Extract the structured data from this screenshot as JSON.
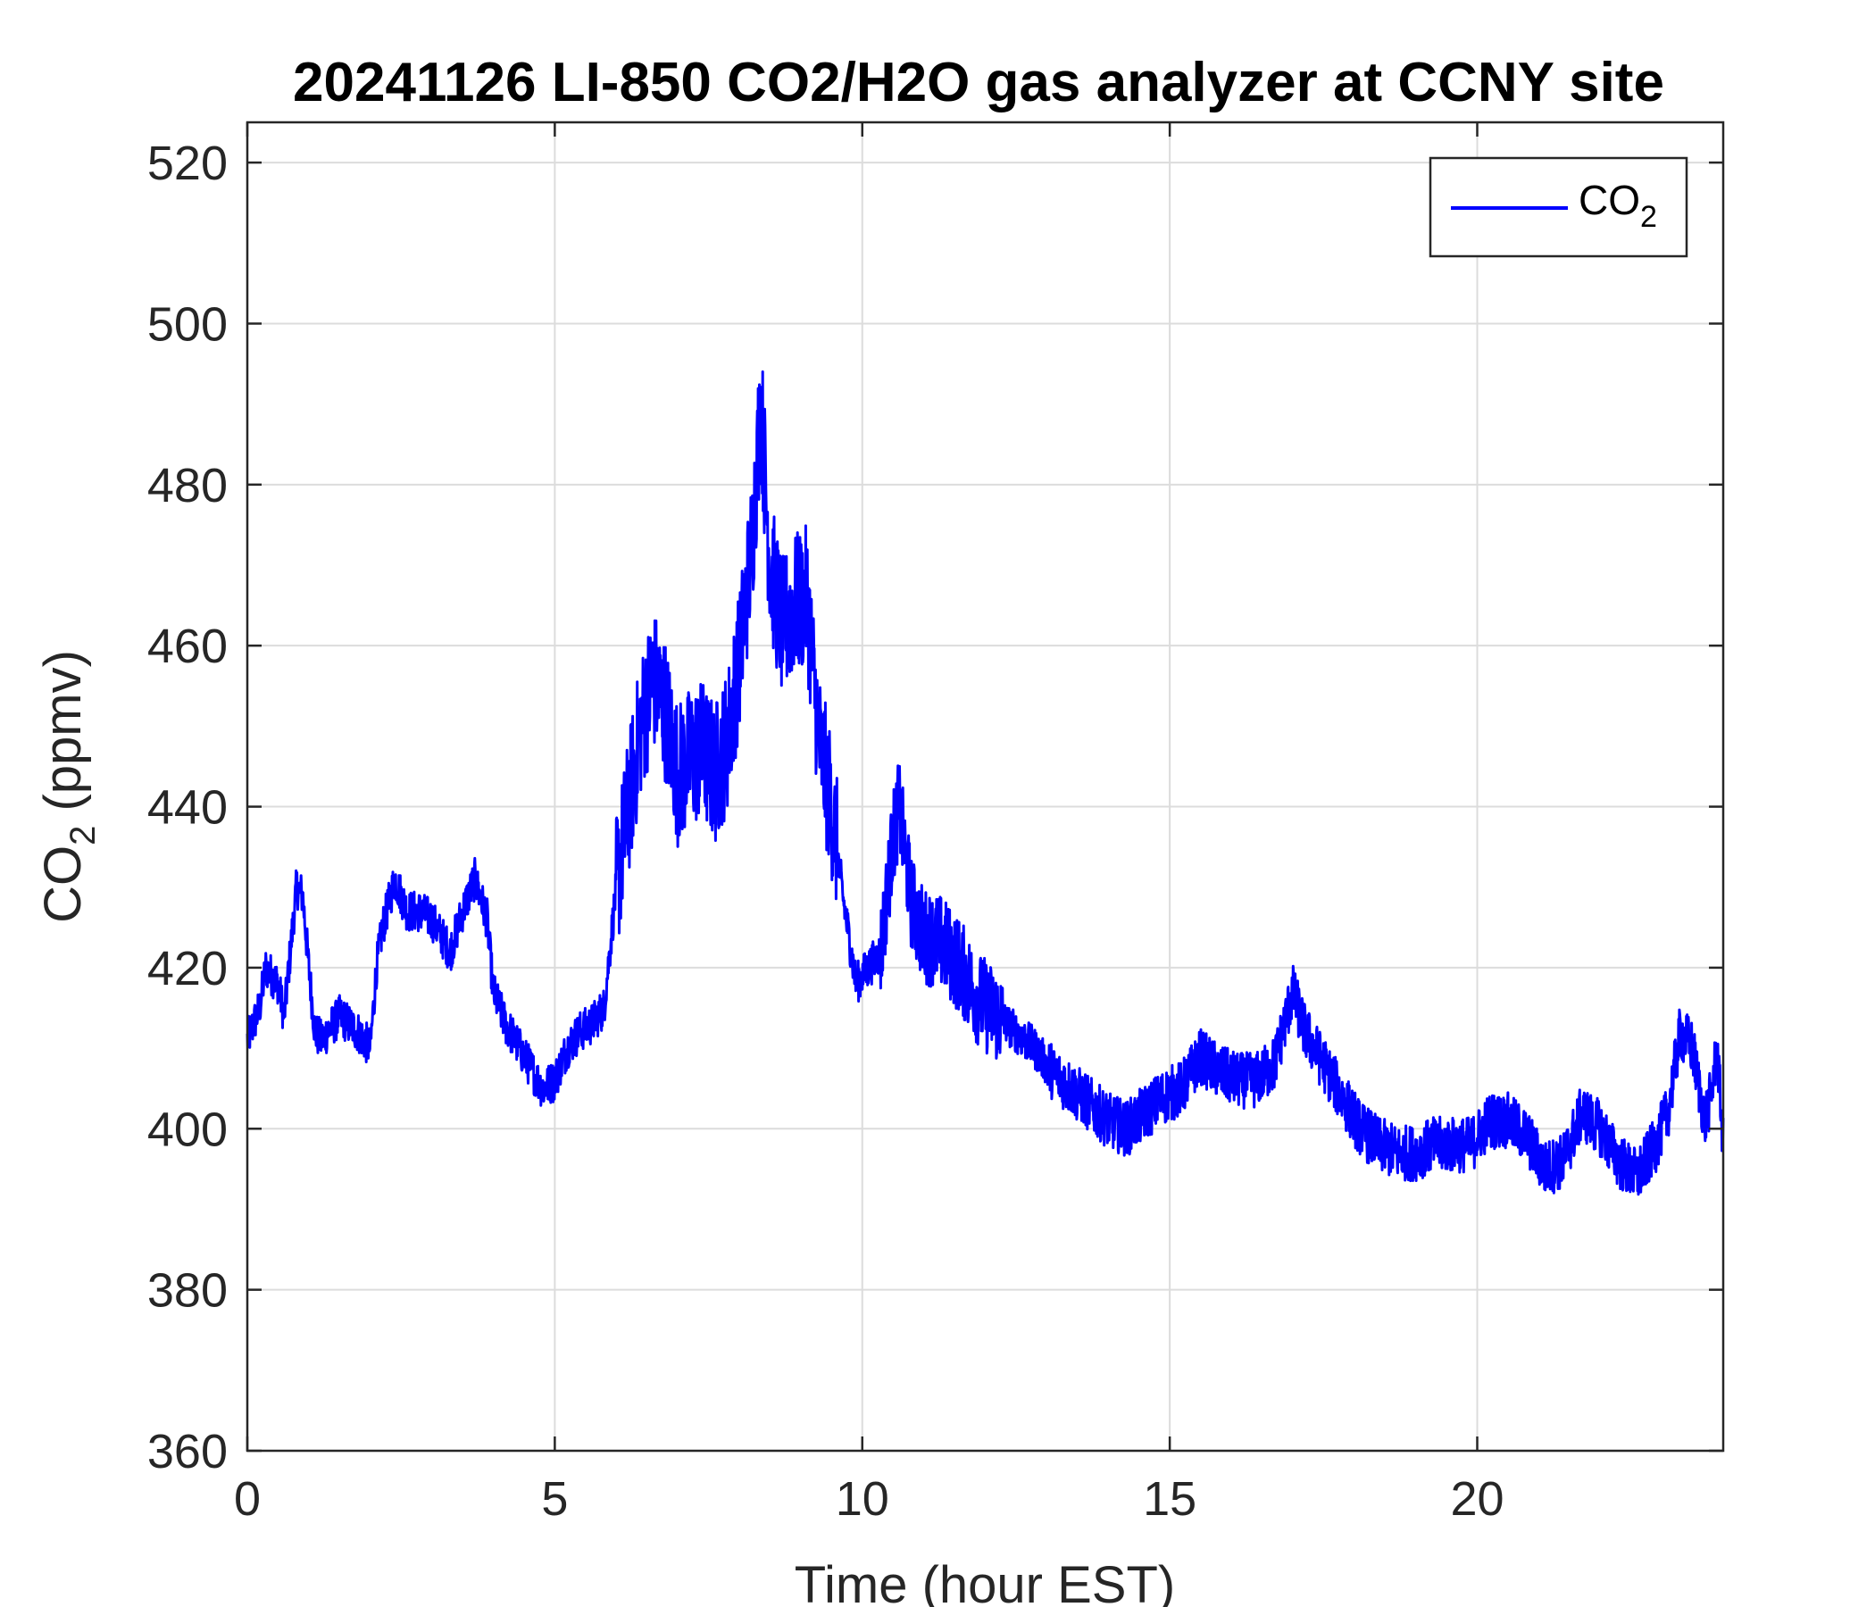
{
  "chart_data": {
    "type": "line",
    "title": "20241126 LI-850 CO2/H2O gas analyzer at CCNY site",
    "xlabel": "Time (hour EST)",
    "ylabel": {
      "main": "CO",
      "sub": "2",
      "tail": " (ppmv)"
    },
    "xlim": [
      0,
      24
    ],
    "ylim": [
      360,
      525
    ],
    "xticks": [
      0,
      5,
      10,
      15,
      20
    ],
    "yticks": [
      360,
      380,
      400,
      420,
      440,
      460,
      480,
      500,
      520
    ],
    "grid": true,
    "legend_position": "top-right",
    "series": [
      {
        "name": {
          "main": "CO",
          "sub": "2"
        },
        "color": "#0000ff",
        "x": [
          0,
          0.2,
          0.3,
          0.5,
          0.6,
          0.7,
          0.8,
          0.9,
          1.0,
          1.1,
          1.2,
          1.5,
          1.8,
          2.0,
          2.1,
          2.2,
          2.4,
          2.6,
          2.8,
          3.0,
          3.3,
          3.5,
          3.7,
          3.9,
          4.0,
          4.2,
          4.5,
          4.8,
          5.0,
          5.2,
          5.4,
          5.6,
          5.8,
          6.0,
          6.2,
          6.4,
          6.6,
          6.8,
          7.0,
          7.2,
          7.4,
          7.6,
          7.8,
          8.0,
          8.2,
          8.35,
          8.5,
          8.7,
          8.9,
          9.1,
          9.3,
          9.5,
          9.7,
          9.9,
          10.1,
          10.3,
          10.5,
          10.6,
          10.8,
          11.0,
          11.3,
          11.6,
          11.9,
          12.2,
          12.5,
          12.8,
          13.1,
          13.4,
          13.7,
          14.0,
          14.3,
          14.6,
          14.9,
          15.2,
          15.5,
          15.8,
          16.1,
          16.4,
          16.7,
          17.0,
          17.2,
          17.5,
          17.8,
          18.1,
          18.4,
          18.7,
          19.0,
          19.3,
          19.6,
          19.9,
          20.2,
          20.5,
          20.8,
          21.1,
          21.4,
          21.7,
          22.0,
          22.3,
          22.6,
          22.9,
          23.1,
          23.3,
          23.5,
          23.7,
          23.8,
          23.9,
          24.0
        ],
        "y": [
          411,
          415,
          420,
          418,
          414,
          422,
          430,
          429,
          420,
          412,
          411,
          414,
          412,
          410,
          420,
          425,
          431,
          427,
          427,
          426,
          422,
          427,
          431,
          426,
          417,
          413,
          409,
          405,
          406,
          410,
          412,
          413,
          415,
          430,
          440,
          450,
          456,
          452,
          444,
          446,
          447,
          444,
          448,
          458,
          472,
          490,
          470,
          462,
          465,
          466,
          448,
          440,
          428,
          418,
          420,
          422,
          436,
          440,
          428,
          424,
          423,
          420,
          416,
          414,
          412,
          410,
          407,
          405,
          403,
          401,
          400,
          402,
          404,
          405,
          409,
          407,
          406,
          406,
          408,
          417,
          412,
          408,
          404,
          400,
          398,
          397,
          397,
          398,
          398,
          398,
          401,
          401,
          399,
          395,
          396,
          402,
          400,
          396,
          394,
          398,
          402,
          412,
          410,
          401,
          404,
          410,
          398
        ]
      }
    ]
  }
}
